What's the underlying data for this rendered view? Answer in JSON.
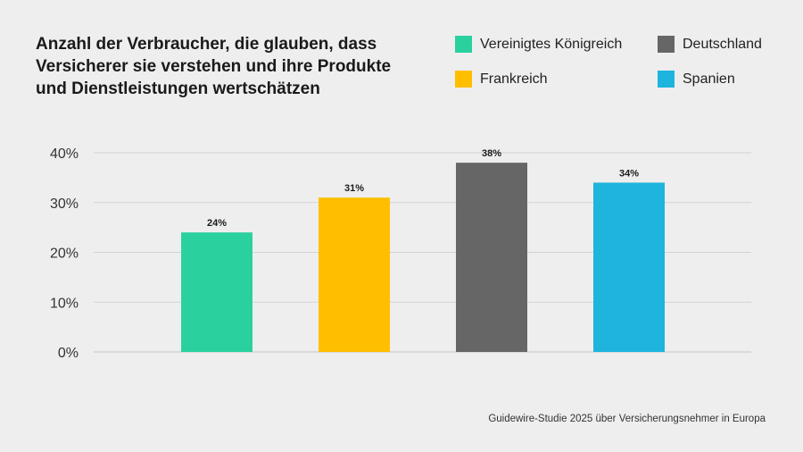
{
  "chart_data": {
    "type": "bar",
    "title": "Anzahl der Verbraucher, die glauben, dass Versicherer sie verstehen und ihre Produkte und Dienstleistungen wertschätzen",
    "categories": [
      "Vereinigtes Königreich",
      "Frankreich",
      "Deutschland",
      "Spanien"
    ],
    "values": [
      24,
      31,
      38,
      34
    ],
    "value_labels": [
      "24%",
      "31%",
      "38%",
      "34%"
    ],
    "colors": [
      "#2ad19e",
      "#ffbf00",
      "#666666",
      "#1eb4dd"
    ],
    "y_ticks": [
      {
        "value": 0,
        "label": "0%"
      },
      {
        "value": 10,
        "label": "10%"
      },
      {
        "value": 20,
        "label": "20%"
      },
      {
        "value": 30,
        "label": "30%"
      },
      {
        "value": 40,
        "label": "40%"
      }
    ],
    "ylim": [
      0,
      40
    ],
    "grid": true,
    "legend_position": "top-right"
  },
  "legend": [
    {
      "label": "Vereinigtes Königreich",
      "color": "#2ad19e"
    },
    {
      "label": "Deutschland",
      "color": "#666666"
    },
    {
      "label": "Frankreich",
      "color": "#ffbf00"
    },
    {
      "label": "Spanien",
      "color": "#1eb4dd"
    }
  ],
  "source": "Guidewire-Studie 2025 über Versicherungsnehmer in Europa"
}
